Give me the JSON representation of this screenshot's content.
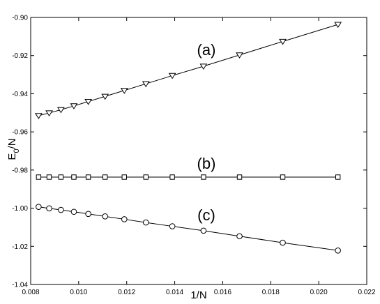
{
  "chart_data": {
    "type": "scatter",
    "xlabel": "1/N",
    "ylabel_main": "E",
    "ylabel_sub": "0",
    "ylabel_tail": "/N",
    "xlim": [
      0.008,
      0.022
    ],
    "ylim": [
      -1.04,
      -0.9
    ],
    "x_ticks": [
      "0.008",
      "0.010",
      "0.012",
      "0.014",
      "0.016",
      "0.018",
      "0.020",
      "0.022"
    ],
    "y_ticks": [
      "-0.90",
      "-0.92",
      "-0.94",
      "-0.96",
      "-0.98",
      "-1.00",
      "-1.02",
      "-1.04"
    ],
    "grid": false,
    "series": [
      {
        "label": "(a)",
        "marker": "triangle-down",
        "x": [
          0.00833,
          0.00877,
          0.00926,
          0.0098,
          0.0104,
          0.0111,
          0.0119,
          0.0128,
          0.0139,
          0.0152,
          0.0167,
          0.0185,
          0.0208
        ],
        "y": [
          -0.9515,
          -0.9501,
          -0.9484,
          -0.9464,
          -0.9441,
          -0.9414,
          -0.9383,
          -0.9348,
          -0.9305,
          -0.9256,
          -0.9197,
          -0.9126,
          -0.9037
        ]
      },
      {
        "label": "(b)",
        "marker": "square",
        "x": [
          0.00833,
          0.00877,
          0.00926,
          0.0098,
          0.0104,
          0.0111,
          0.0119,
          0.0128,
          0.0139,
          0.0152,
          0.0167,
          0.0185,
          0.0208
        ],
        "y": [
          -0.9837,
          -0.9837,
          -0.9837,
          -0.9837,
          -0.9837,
          -0.9837,
          -0.9837,
          -0.9837,
          -0.9837,
          -0.9837,
          -0.9837,
          -0.9837,
          -0.9837
        ]
      },
      {
        "label": "(c)",
        "marker": "circle",
        "x": [
          0.00833,
          0.00877,
          0.00926,
          0.0098,
          0.0104,
          0.0111,
          0.0119,
          0.0128,
          0.0139,
          0.0152,
          0.0167,
          0.0185,
          0.0208
        ],
        "y": [
          -0.9993,
          -1.0001,
          -1.0009,
          -1.0019,
          -1.003,
          -1.0043,
          -1.0058,
          -1.0075,
          -1.0095,
          -1.0118,
          -1.0147,
          -1.0181,
          -1.0222
        ]
      }
    ]
  }
}
